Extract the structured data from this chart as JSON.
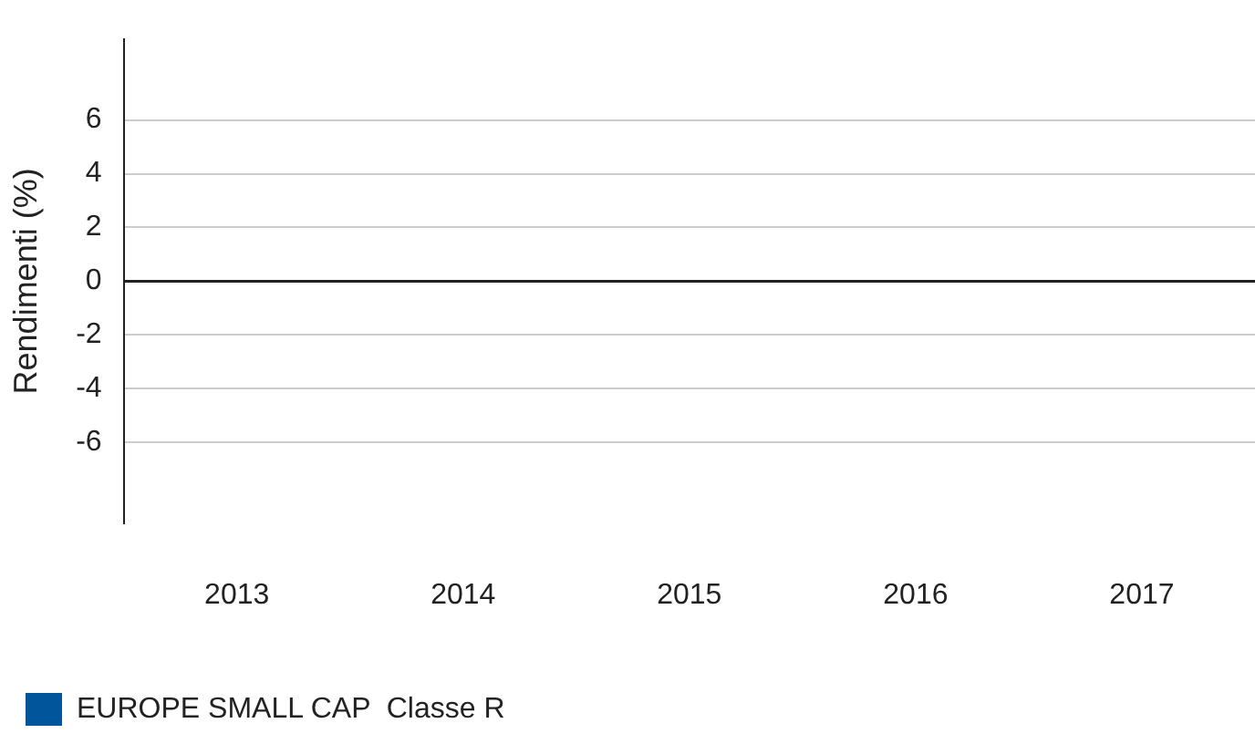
{
  "chart_data": {
    "type": "bar",
    "ylabel": "Rendimenti (%)",
    "categories": [
      "2013",
      "2014",
      "2015",
      "2016",
      "2017"
    ],
    "series": [
      {
        "name": "EUROPE SMALL CAP  Classe R",
        "color": "#00559b",
        "values": [
          null,
          null,
          null,
          null,
          null
        ]
      }
    ],
    "ylim": [
      -9,
      9
    ],
    "yticks": [
      -6,
      -4,
      -2,
      0,
      2,
      4,
      6
    ],
    "grid": "y",
    "legend": "bottom left"
  }
}
